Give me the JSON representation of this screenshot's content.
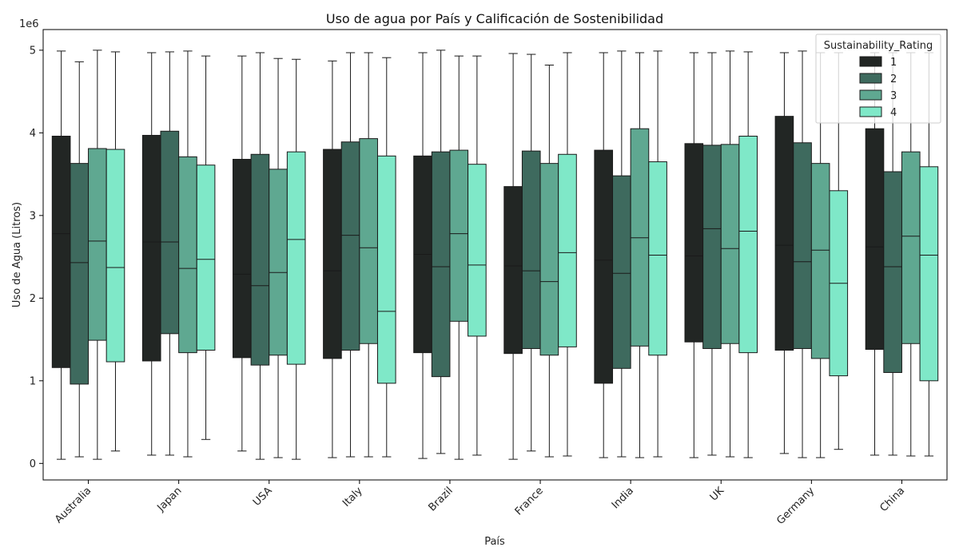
{
  "chart_data": {
    "type": "box",
    "title": "Uso de agua por País y Calificación de Sostenibilidad",
    "xlabel": "País",
    "ylabel": "Uso de Agua (Litros)",
    "y_offset_label": "1e6",
    "y_scale_factor": 1000000,
    "ylim": [
      -200000,
      5250000
    ],
    "yticks": [
      0,
      1000000,
      2000000,
      3000000,
      4000000,
      5000000
    ],
    "ytick_labels": [
      "0",
      "1",
      "2",
      "3",
      "4",
      "5"
    ],
    "grid": false,
    "legend": {
      "title": "Sustainability_Rating",
      "placement": "top-right",
      "entries": [
        "1",
        "2",
        "3",
        "4"
      ]
    },
    "categories": [
      "Australia",
      "Japan",
      "USA",
      "Italy",
      "Brazil",
      "France",
      "India",
      "UK",
      "Germany",
      "China"
    ],
    "series": [
      {
        "name": "1",
        "color": "#222624",
        "boxes": [
          {
            "whislo": 50000,
            "q1": 1160000,
            "med": 2780000,
            "q3": 3960000,
            "whishi": 4990000
          },
          {
            "whislo": 100000,
            "q1": 1240000,
            "med": 2680000,
            "q3": 3970000,
            "whishi": 4970000
          },
          {
            "whislo": 150000,
            "q1": 1280000,
            "med": 2290000,
            "q3": 3680000,
            "whishi": 4930000
          },
          {
            "whislo": 70000,
            "q1": 1270000,
            "med": 2330000,
            "q3": 3800000,
            "whishi": 4870000
          },
          {
            "whislo": 60000,
            "q1": 1340000,
            "med": 2530000,
            "q3": 3720000,
            "whishi": 4970000
          },
          {
            "whislo": 50000,
            "q1": 1330000,
            "med": 2390000,
            "q3": 3350000,
            "whishi": 4960000
          },
          {
            "whislo": 70000,
            "q1": 970000,
            "med": 2460000,
            "q3": 3790000,
            "whishi": 4970000
          },
          {
            "whislo": 70000,
            "q1": 1470000,
            "med": 2510000,
            "q3": 3870000,
            "whishi": 4970000
          },
          {
            "whislo": 120000,
            "q1": 1370000,
            "med": 2640000,
            "q3": 4200000,
            "whishi": 4970000
          },
          {
            "whislo": 100000,
            "q1": 1380000,
            "med": 2620000,
            "q3": 4050000,
            "whishi": 4970000
          }
        ]
      },
      {
        "name": "2",
        "color": "#3e6a5e",
        "boxes": [
          {
            "whislo": 80000,
            "q1": 960000,
            "med": 2430000,
            "q3": 3630000,
            "whishi": 4860000
          },
          {
            "whislo": 100000,
            "q1": 1570000,
            "med": 2680000,
            "q3": 4020000,
            "whishi": 4980000
          },
          {
            "whislo": 50000,
            "q1": 1190000,
            "med": 2150000,
            "q3": 3740000,
            "whishi": 4970000
          },
          {
            "whislo": 80000,
            "q1": 1370000,
            "med": 2760000,
            "q3": 3890000,
            "whishi": 4970000
          },
          {
            "whislo": 120000,
            "q1": 1050000,
            "med": 2380000,
            "q3": 3770000,
            "whishi": 5000000
          },
          {
            "whislo": 150000,
            "q1": 1390000,
            "med": 2330000,
            "q3": 3780000,
            "whishi": 4950000
          },
          {
            "whislo": 80000,
            "q1": 1150000,
            "med": 2300000,
            "q3": 3480000,
            "whishi": 4990000
          },
          {
            "whislo": 100000,
            "q1": 1390000,
            "med": 2840000,
            "q3": 3850000,
            "whishi": 4970000
          },
          {
            "whislo": 70000,
            "q1": 1390000,
            "med": 2440000,
            "q3": 3880000,
            "whishi": 4990000
          },
          {
            "whislo": 100000,
            "q1": 1100000,
            "med": 2380000,
            "q3": 3530000,
            "whishi": 4970000
          }
        ]
      },
      {
        "name": "3",
        "color": "#5fa891",
        "boxes": [
          {
            "whislo": 50000,
            "q1": 1490000,
            "med": 2690000,
            "q3": 3810000,
            "whishi": 5000000
          },
          {
            "whislo": 80000,
            "q1": 1340000,
            "med": 2360000,
            "q3": 3710000,
            "whishi": 4990000
          },
          {
            "whislo": 70000,
            "q1": 1310000,
            "med": 2310000,
            "q3": 3560000,
            "whishi": 4900000
          },
          {
            "whislo": 80000,
            "q1": 1450000,
            "med": 2610000,
            "q3": 3930000,
            "whishi": 4970000
          },
          {
            "whislo": 50000,
            "q1": 1720000,
            "med": 2780000,
            "q3": 3790000,
            "whishi": 4930000
          },
          {
            "whislo": 80000,
            "q1": 1310000,
            "med": 2200000,
            "q3": 3630000,
            "whishi": 4820000
          },
          {
            "whislo": 70000,
            "q1": 1420000,
            "med": 2730000,
            "q3": 4050000,
            "whishi": 4970000
          },
          {
            "whislo": 80000,
            "q1": 1450000,
            "med": 2600000,
            "q3": 3860000,
            "whishi": 4990000
          },
          {
            "whislo": 70000,
            "q1": 1270000,
            "med": 2580000,
            "q3": 3630000,
            "whishi": 4970000
          },
          {
            "whislo": 90000,
            "q1": 1450000,
            "med": 2750000,
            "q3": 3770000,
            "whishi": 4970000
          }
        ]
      },
      {
        "name": "4",
        "color": "#7fe8c8",
        "boxes": [
          {
            "whislo": 150000,
            "q1": 1230000,
            "med": 2370000,
            "q3": 3800000,
            "whishi": 4980000
          },
          {
            "whislo": 290000,
            "q1": 1370000,
            "med": 2470000,
            "q3": 3610000,
            "whishi": 4930000
          },
          {
            "whislo": 50000,
            "q1": 1200000,
            "med": 2710000,
            "q3": 3770000,
            "whishi": 4890000
          },
          {
            "whislo": 80000,
            "q1": 970000,
            "med": 1840000,
            "q3": 3720000,
            "whishi": 4910000
          },
          {
            "whislo": 100000,
            "q1": 1540000,
            "med": 2400000,
            "q3": 3620000,
            "whishi": 4930000
          },
          {
            "whislo": 90000,
            "q1": 1410000,
            "med": 2550000,
            "q3": 3740000,
            "whishi": 4970000
          },
          {
            "whislo": 80000,
            "q1": 1310000,
            "med": 2520000,
            "q3": 3650000,
            "whishi": 4990000
          },
          {
            "whislo": 70000,
            "q1": 1340000,
            "med": 2810000,
            "q3": 3960000,
            "whishi": 4980000
          },
          {
            "whislo": 170000,
            "q1": 1060000,
            "med": 2180000,
            "q3": 3300000,
            "whishi": 4970000
          },
          {
            "whislo": 90000,
            "q1": 1000000,
            "med": 2520000,
            "q3": 3590000,
            "whishi": 4970000
          }
        ]
      }
    ]
  }
}
